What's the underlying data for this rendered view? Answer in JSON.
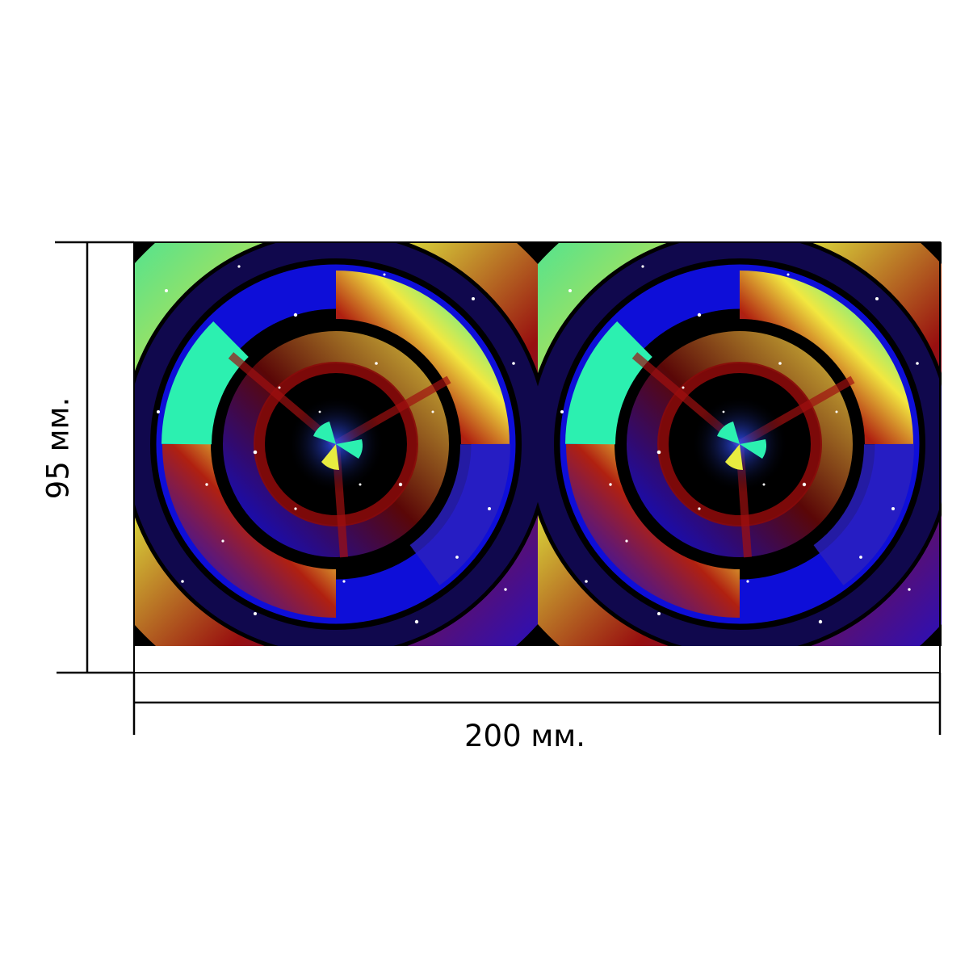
{
  "dimensions": {
    "width_label": "200 мм.",
    "height_label": "95 мм."
  },
  "panels": [
    {
      "name": "left-pattern-panel"
    },
    {
      "name": "right-pattern-panel"
    }
  ],
  "colors": {
    "background": "#000000",
    "mint": "#2cf0b0",
    "yellow": "#f2e840",
    "blue": "#1010f0",
    "red": "#a01010",
    "dark_red": "#6a0808",
    "lines": "#000000"
  }
}
